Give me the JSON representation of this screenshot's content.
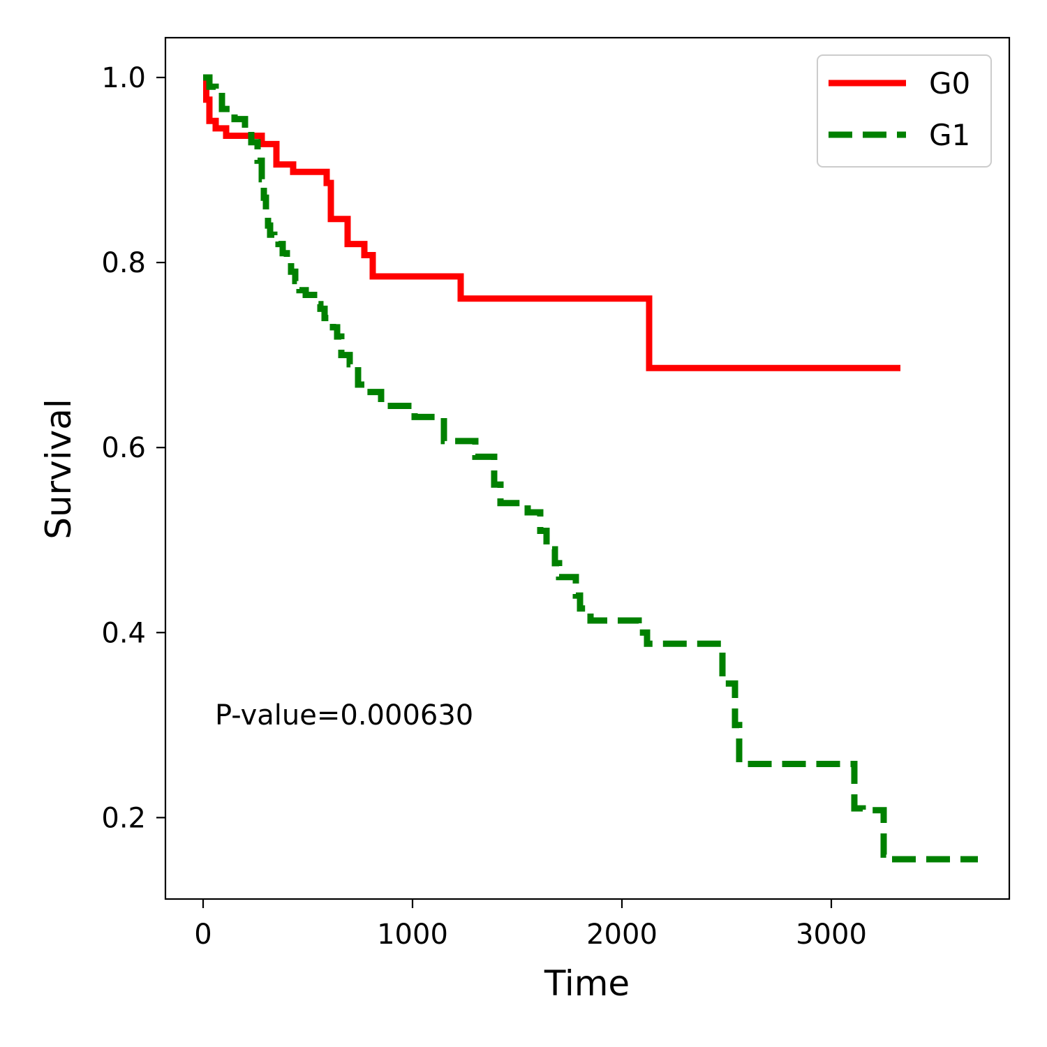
{
  "chart_data": {
    "type": "line",
    "step": true,
    "title": "",
    "xlabel": "Time",
    "ylabel": "Survival",
    "xlim": [
      -180,
      3850
    ],
    "ylim": [
      0.112,
      1.043
    ],
    "xticks": [
      0,
      1000,
      2000,
      3000
    ],
    "xtick_labels": [
      "0",
      "1000",
      "2000",
      "3000"
    ],
    "yticks": [
      0.2,
      0.4,
      0.6,
      0.8,
      1.0
    ],
    "ytick_labels": [
      "0.2",
      "0.4",
      "0.6",
      "0.8",
      "1.0"
    ],
    "grid": false,
    "legend": "top-right",
    "annotation": "P-value=0.000630",
    "series": [
      {
        "name": "G0",
        "color": "#ff0000",
        "style": "solid",
        "x": [
          0,
          15,
          30,
          60,
          110,
          280,
          350,
          430,
          590,
          610,
          690,
          770,
          810,
          1230,
          2130,
          3330
        ],
        "y": [
          1.0,
          0.976,
          0.953,
          0.945,
          0.937,
          0.928,
          0.906,
          0.898,
          0.886,
          0.847,
          0.82,
          0.808,
          0.785,
          0.761,
          0.686,
          0.686
        ]
      },
      {
        "name": "G1",
        "color": "#008000",
        "style": "dashed",
        "x": [
          0,
          30,
          60,
          90,
          150,
          200,
          230,
          260,
          280,
          290,
          300,
          310,
          320,
          340,
          360,
          380,
          400,
          420,
          440,
          460,
          490,
          530,
          560,
          580,
          620,
          640,
          660,
          700,
          740,
          780,
          850,
          1010,
          1150,
          1300,
          1390,
          1420,
          1550,
          1610,
          1640,
          1680,
          1700,
          1780,
          1800,
          1850,
          2080,
          2120,
          2480,
          2540,
          2560,
          3110,
          3150,
          3250,
          3280,
          3700
        ],
        "y": [
          1.0,
          0.99,
          0.98,
          0.966,
          0.955,
          0.945,
          0.93,
          0.91,
          0.89,
          0.87,
          0.85,
          0.84,
          0.83,
          0.825,
          0.82,
          0.81,
          0.8,
          0.79,
          0.78,
          0.77,
          0.765,
          0.755,
          0.75,
          0.74,
          0.73,
          0.72,
          0.7,
          0.69,
          0.668,
          0.66,
          0.645,
          0.633,
          0.607,
          0.59,
          0.56,
          0.54,
          0.53,
          0.51,
          0.49,
          0.475,
          0.46,
          0.44,
          0.426,
          0.413,
          0.4,
          0.388,
          0.345,
          0.3,
          0.258,
          0.21,
          0.208,
          0.16,
          0.155,
          0.155
        ]
      }
    ]
  }
}
